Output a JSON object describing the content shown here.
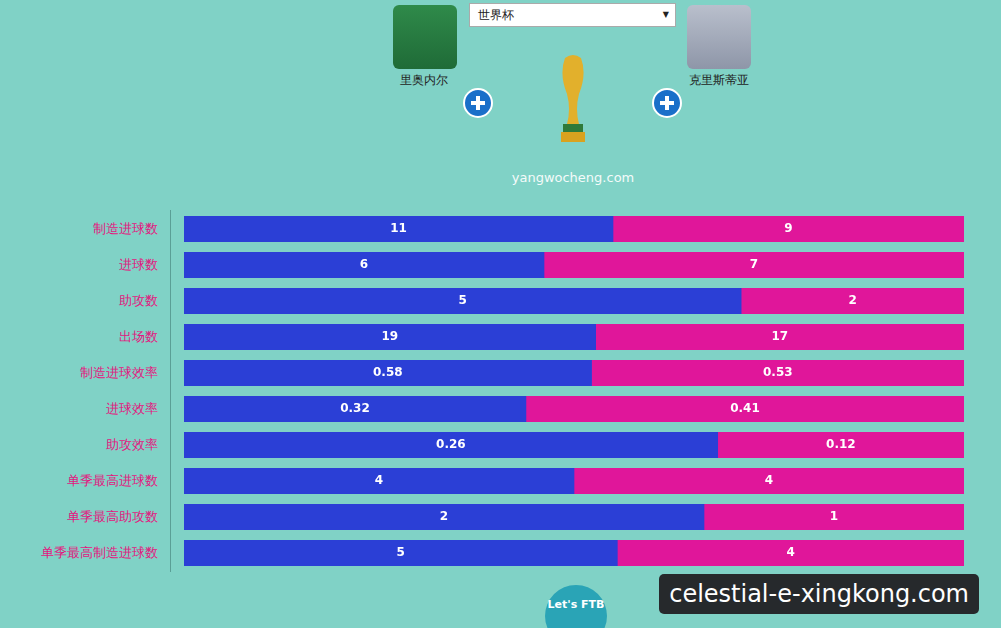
{
  "header": {
    "selector": "世界杯",
    "site": "yangwocheng.com",
    "footer": "Let's FTB",
    "watermark": "celestial-e-xingkong.com"
  },
  "chart_data": {
    "type": "bar",
    "orientation": "horizontal",
    "stacked": true,
    "data_labels": true,
    "tick_labels": false,
    "grid": false,
    "categories": [
      "制造进球数",
      "进球数",
      "助攻数",
      "出场数",
      "制造进球效率",
      "进球效率",
      "助攻效率",
      "单季最高进球数",
      "单季最高助攻数",
      "单季最高制造进球数"
    ],
    "series": [
      {
        "name": "里奥内尔",
        "color": "#2b3fd6",
        "values": [
          11,
          6,
          5,
          19,
          0.58,
          0.32,
          0.26,
          4,
          2,
          5
        ]
      },
      {
        "name": "克里斯蒂亚",
        "color": "#e0169a",
        "values": [
          9,
          7,
          2,
          17,
          0.53,
          0.41,
          0.12,
          4,
          1,
          4
        ]
      }
    ]
  }
}
